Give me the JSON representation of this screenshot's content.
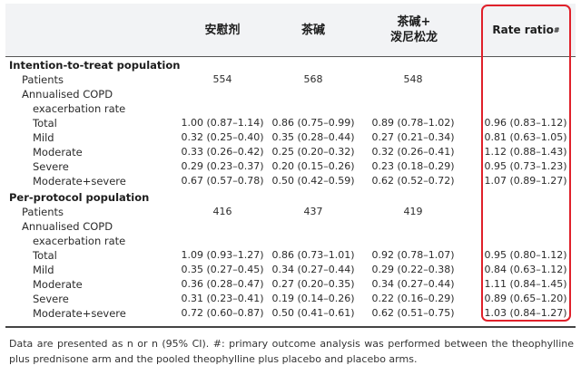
{
  "header": {
    "col1": "安慰剂",
    "col2": "茶碱",
    "col3_line1": "茶碱+",
    "col3_line2": "泼尼松龙",
    "col4": "Rate ratio",
    "col4_sup": "#"
  },
  "itt": {
    "title": "Intention-to-treat population",
    "patients": {
      "label": "Patients",
      "v": [
        "554",
        "568",
        "548",
        ""
      ]
    },
    "rate_l1": "Annualised COPD",
    "rate_l2": "exacerbation rate",
    "rows": [
      {
        "label": "Total",
        "v": [
          "1.00 (0.87–1.14)",
          "0.86 (0.75–0.99)",
          "0.89 (0.78–1.02)",
          "0.96 (0.83–1.12)"
        ]
      },
      {
        "label": "Mild",
        "v": [
          "0.32 (0.25–0.40)",
          "0.35 (0.28–0.44)",
          "0.27 (0.21–0.34)",
          "0.81 (0.63–1.05)"
        ]
      },
      {
        "label": "Moderate",
        "v": [
          "0.33 (0.26–0.42)",
          "0.25 (0.20–0.32)",
          "0.32 (0.26–0.41)",
          "1.12 (0.88–1.43)"
        ]
      },
      {
        "label": "Severe",
        "v": [
          "0.29 (0.23–0.37)",
          "0.20 (0.15–0.26)",
          "0.23 (0.18–0.29)",
          "0.95 (0.73–1.23)"
        ]
      },
      {
        "label": "Moderate+severe",
        "v": [
          "0.67 (0.57–0.78)",
          "0.50 (0.42–0.59)",
          "0.62 (0.52–0.72)",
          "1.07 (0.89–1.27)"
        ]
      }
    ]
  },
  "pp": {
    "title": "Per-protocol population",
    "patients": {
      "label": "Patients",
      "v": [
        "416",
        "437",
        "419",
        ""
      ]
    },
    "rate_l1": "Annualised COPD",
    "rate_l2": "exacerbation rate",
    "rows": [
      {
        "label": "Total",
        "v": [
          "1.09 (0.93–1.27)",
          "0.86 (0.73–1.01)",
          "0.92 (0.78–1.07)",
          "0.95 (0.80–1.12)"
        ]
      },
      {
        "label": "Mild",
        "v": [
          "0.35 (0.27–0.45)",
          "0.34 (0.27–0.44)",
          "0.29 (0.22–0.38)",
          "0.84 (0.63–1.12)"
        ]
      },
      {
        "label": "Moderate",
        "v": [
          "0.36 (0.28–0.47)",
          "0.27 (0.20–0.35)",
          "0.34 (0.27–0.44)",
          "1.11 (0.84–1.45)"
        ]
      },
      {
        "label": "Severe",
        "v": [
          "0.31 (0.23–0.41)",
          "0.19 (0.14–0.26)",
          "0.22 (0.16–0.29)",
          "0.89 (0.65–1.20)"
        ]
      },
      {
        "label": "Moderate+severe",
        "v": [
          "0.72 (0.60–0.87)",
          "0.50 (0.41–0.61)",
          "0.62 (0.51–0.75)",
          "1.03 (0.84–1.27)"
        ]
      }
    ]
  },
  "footnote": "Data are presented as n or n (95% CI). #: primary outcome analysis was performed between the theophylline plus prednisone arm and the pooled theophylline plus placebo and placebo arms.",
  "colors": {
    "highlight": "#e0202a",
    "header_bg": "#f2f3f5"
  }
}
